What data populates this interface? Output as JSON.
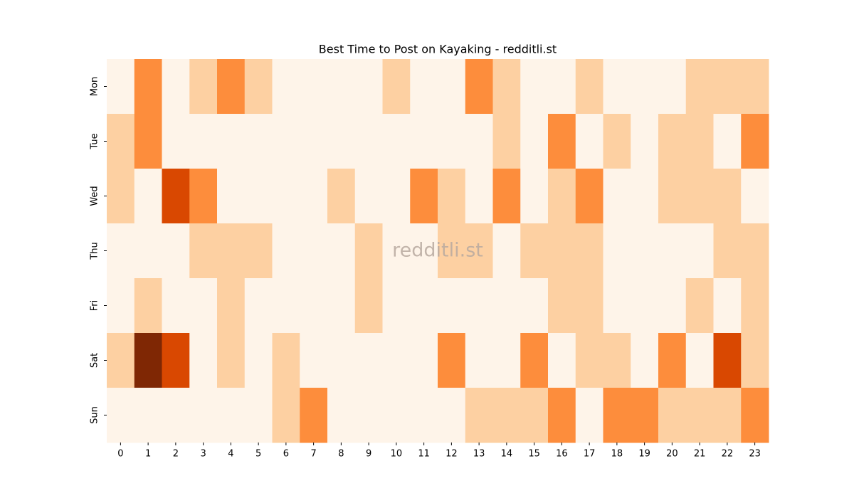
{
  "chart_data": {
    "type": "heatmap",
    "title": "Best Time to Post on Kayaking - redditli.st",
    "watermark": "redditli.st",
    "x": [
      0,
      1,
      2,
      3,
      4,
      5,
      6,
      7,
      8,
      9,
      10,
      11,
      12,
      13,
      14,
      15,
      16,
      17,
      18,
      19,
      20,
      21,
      22,
      23
    ],
    "y": [
      "Mon",
      "Tue",
      "Wed",
      "Thu",
      "Fri",
      "Sat",
      "Sun"
    ],
    "values": [
      [
        0,
        2,
        0,
        1,
        2,
        1,
        0,
        0,
        0,
        0,
        1,
        0,
        0,
        2,
        1,
        0,
        0,
        1,
        0,
        0,
        0,
        1,
        1,
        1
      ],
      [
        1,
        2,
        0,
        0,
        0,
        0,
        0,
        0,
        0,
        0,
        0,
        0,
        0,
        0,
        1,
        0,
        2,
        0,
        1,
        0,
        1,
        1,
        0,
        2
      ],
      [
        1,
        0,
        3,
        2,
        0,
        0,
        0,
        0,
        1,
        0,
        0,
        2,
        1,
        0,
        2,
        0,
        1,
        2,
        0,
        0,
        1,
        1,
        1,
        0
      ],
      [
        0,
        0,
        0,
        1,
        1,
        1,
        0,
        0,
        0,
        1,
        0,
        0,
        1,
        1,
        0,
        1,
        1,
        1,
        0,
        0,
        0,
        0,
        1,
        1
      ],
      [
        0,
        1,
        0,
        0,
        1,
        0,
        0,
        0,
        0,
        1,
        0,
        0,
        0,
        0,
        0,
        0,
        1,
        1,
        0,
        0,
        0,
        1,
        0,
        1
      ],
      [
        1,
        4,
        3,
        0,
        1,
        0,
        1,
        0,
        0,
        0,
        0,
        0,
        2,
        0,
        0,
        2,
        0,
        1,
        1,
        0,
        2,
        0,
        3,
        1
      ],
      [
        0,
        0,
        0,
        0,
        0,
        0,
        1,
        2,
        0,
        0,
        0,
        0,
        0,
        1,
        1,
        1,
        2,
        0,
        2,
        2,
        1,
        1,
        1,
        2
      ]
    ],
    "vmin": 0,
    "vmax": 4,
    "colors": [
      "#fef4e9",
      "#fdd0a2",
      "#fd8d3c",
      "#d94801",
      "#7f2704"
    ]
  }
}
